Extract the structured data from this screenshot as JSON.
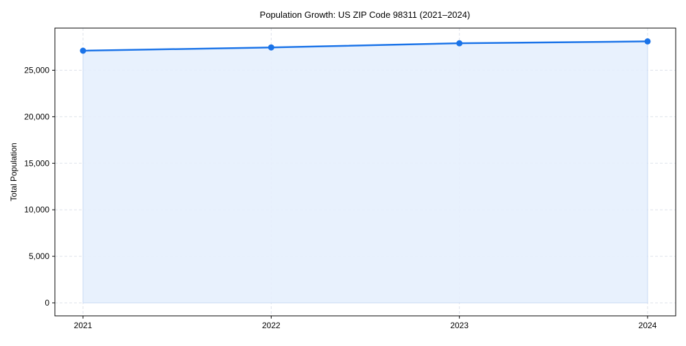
{
  "chart_data": {
    "type": "area",
    "title": "Population Growth: US ZIP Code 98311 (2021–2024)",
    "xlabel": "",
    "ylabel": "Total Population",
    "x": [
      "2021",
      "2022",
      "2023",
      "2024"
    ],
    "values": [
      27100,
      27450,
      27900,
      28100
    ],
    "yticks": [
      0,
      5000,
      10000,
      15000,
      20000,
      25000
    ],
    "ytick_labels": [
      "0",
      "5,000",
      "10,000",
      "15,000",
      "20,000",
      "25,000"
    ],
    "ylim": [
      -1400,
      29530
    ],
    "grid": true,
    "colors": {
      "line": "#1a73e8",
      "fill": "#e5effd",
      "grid": "#dde2ea"
    }
  }
}
